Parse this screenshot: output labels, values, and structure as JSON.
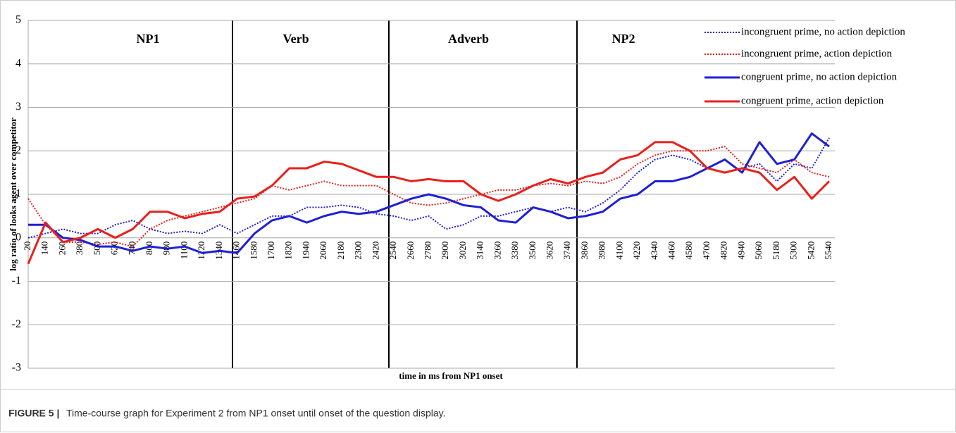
{
  "chart_data": {
    "type": "line",
    "ylabel": "log ratio of looks agent over competitor",
    "xlabel": "time in ms from NP1 onset",
    "regions": [
      "NP1",
      "Verb",
      "Adverb",
      "NP2"
    ],
    "categories": [
      "20",
      "140",
      "260",
      "380",
      "500",
      "620",
      "740",
      "860",
      "980",
      "1100",
      "1220",
      "1340",
      "1460",
      "1580",
      "1700",
      "1820",
      "1940",
      "2060",
      "2180",
      "2300",
      "2420",
      "2540",
      "2660",
      "2780",
      "2900",
      "3020",
      "3140",
      "3260",
      "3380",
      "3500",
      "3620",
      "3740",
      "3860",
      "3980",
      "4100",
      "4220",
      "4340",
      "4460",
      "4580",
      "4700",
      "4820",
      "4940",
      "5060",
      "5180",
      "5300",
      "5420",
      "5540"
    ],
    "ylim": [
      -3,
      5
    ],
    "yticks": [
      -3,
      -2,
      -1,
      0,
      1,
      2,
      3,
      4,
      5
    ],
    "grid": true,
    "series": [
      {
        "name": "incongruent prime, no action depiction",
        "color": "#1f1fd6",
        "dashed": true,
        "values": [
          0,
          0.1,
          0.2,
          0.1,
          0.1,
          0.3,
          0.4,
          0.2,
          0.1,
          0.15,
          0.1,
          0.3,
          0.1,
          0.3,
          0.5,
          0.5,
          0.7,
          0.7,
          0.75,
          0.7,
          0.55,
          0.5,
          0.4,
          0.5,
          0.2,
          0.3,
          0.5,
          0.5,
          0.6,
          0.7,
          0.6,
          0.7,
          0.6,
          0.8,
          1.1,
          1.5,
          1.8,
          1.9,
          1.8,
          1.6,
          1.5,
          1.6,
          1.7,
          1.3,
          1.7,
          1.6,
          2.3
        ]
      },
      {
        "name": "incongruent prime, action depiction",
        "color": "#e8201c",
        "dashed": true,
        "values": [
          0.9,
          0.3,
          -0.1,
          -0.1,
          -0.15,
          -0.1,
          -0.2,
          0.2,
          0.4,
          0.5,
          0.6,
          0.7,
          0.8,
          0.9,
          1.2,
          1.1,
          1.2,
          1.3,
          1.2,
          1.2,
          1.2,
          1.0,
          0.8,
          0.75,
          0.8,
          0.9,
          1.0,
          1.1,
          1.1,
          1.2,
          1.25,
          1.2,
          1.3,
          1.25,
          1.4,
          1.7,
          1.9,
          2.0,
          2.0,
          2.0,
          2.1,
          1.7,
          1.6,
          1.5,
          1.8,
          1.5,
          1.4
        ]
      },
      {
        "name": "congruent prime, no action depiction",
        "color": "#1f1fd6",
        "dashed": false,
        "values": [
          0.3,
          0.3,
          0.0,
          -0.05,
          -0.2,
          -0.2,
          -0.3,
          -0.2,
          -0.25,
          -0.2,
          -0.35,
          -0.3,
          -0.35,
          0.1,
          0.4,
          0.5,
          0.35,
          0.5,
          0.6,
          0.55,
          0.6,
          0.75,
          0.9,
          1.0,
          0.9,
          0.75,
          0.7,
          0.4,
          0.35,
          0.7,
          0.6,
          0.45,
          0.5,
          0.6,
          0.9,
          1.0,
          1.3,
          1.3,
          1.4,
          1.6,
          1.8,
          1.5,
          2.2,
          1.7,
          1.8,
          2.4,
          2.1
        ]
      },
      {
        "name": "congruent prime, action depiction",
        "color": "#e8201c",
        "dashed": false,
        "values": [
          -0.6,
          0.35,
          -0.1,
          0.0,
          0.2,
          0.0,
          0.2,
          0.6,
          0.6,
          0.45,
          0.55,
          0.6,
          0.9,
          0.95,
          1.2,
          1.6,
          1.6,
          1.75,
          1.7,
          1.55,
          1.4,
          1.4,
          1.3,
          1.35,
          1.3,
          1.3,
          1.0,
          0.85,
          1.0,
          1.2,
          1.35,
          1.25,
          1.4,
          1.5,
          1.8,
          1.9,
          2.2,
          2.2,
          2.0,
          1.6,
          1.5,
          1.6,
          1.5,
          1.1,
          1.4,
          0.9,
          1.3
        ]
      }
    ]
  },
  "caption": {
    "label": "FIGURE 5 |",
    "text": "Time-course graph for Experiment 2 from NP1 onset until onset of the question display."
  }
}
